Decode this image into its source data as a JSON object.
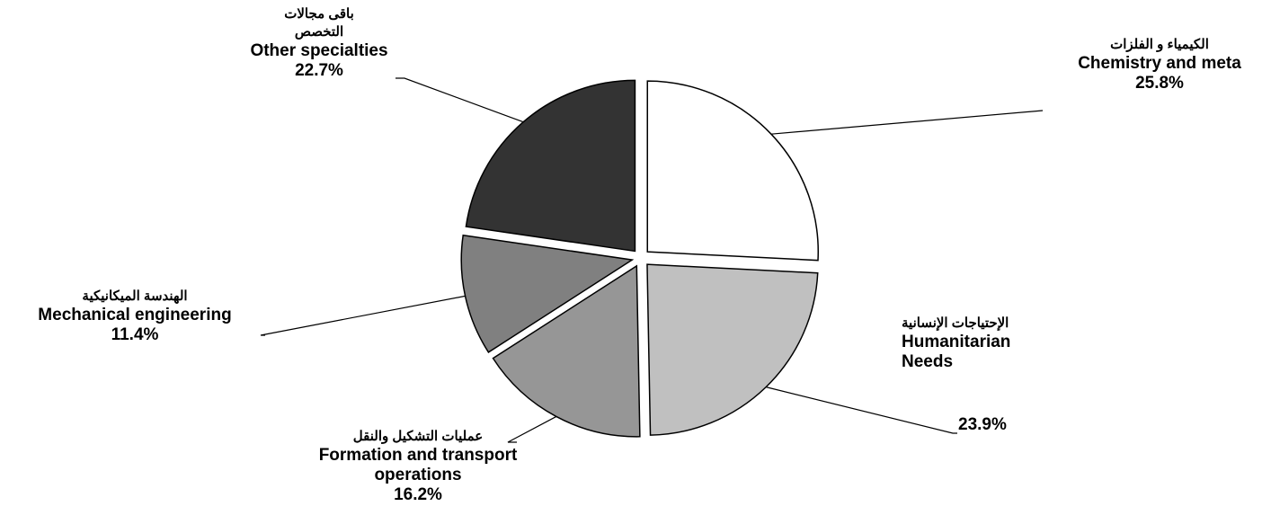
{
  "chart_data": {
    "type": "pie",
    "categories": [
      "Chemistry and meta",
      "Humanitarian Needs",
      "Formation and transport operations",
      "Mechanical engineering",
      "Other specialties"
    ],
    "categories_ar": [
      "الكيمياء و الفلزات",
      "الإحتياجات الإنسانية",
      "عمليات التشكيل والنقل",
      "الهندسة الميكانيكية",
      "باقى مجالات التخصص"
    ],
    "values": [
      25.8,
      23.9,
      16.2,
      11.4,
      22.7
    ],
    "value_labels": [
      "25.8%",
      "23.9%",
      "16.2%",
      "11.4%",
      "22.7%"
    ],
    "colors": [
      "#ffffff",
      "#c0c0c0",
      "#969696",
      "#808080",
      "#333333"
    ]
  }
}
